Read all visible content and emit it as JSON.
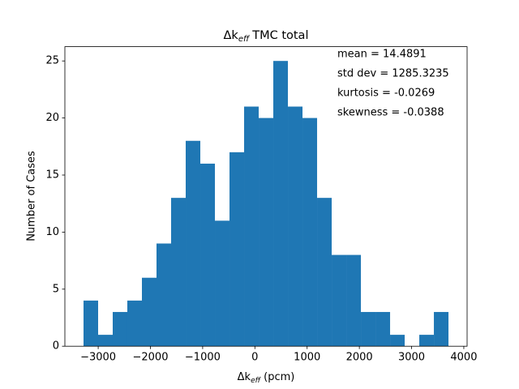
{
  "chart_data": {
    "type": "histogram",
    "title": {
      "symbol": "Δk",
      "subscript": "eff",
      "text": "TMC total"
    },
    "x_label": {
      "symbol": "Δk",
      "subscript": "eff",
      "text": "(pcm)"
    },
    "y_label": "Number of Cases",
    "annotations": [
      "mean = 14.4891",
      "std dev = 1285.3235",
      "kurtosis = -0.0269",
      "skewness = -0.0388"
    ],
    "color": "#1f77b4",
    "bins": [
      -3281,
      -3001.5,
      -2722,
      -2442.5,
      -2163,
      -1883.5,
      -1604,
      -1324.5,
      -1045,
      -765.5,
      -486,
      -206.5,
      73,
      352.5,
      632,
      911.5,
      1191,
      1470.5,
      1750,
      2029.5,
      2309,
      2588.5,
      2868,
      3147.5,
      3427,
      3706.5
    ],
    "values": [
      4,
      1,
      3,
      4,
      6,
      9,
      13,
      18,
      16,
      11,
      17,
      21,
      20,
      25,
      21,
      20,
      13,
      8,
      8,
      3,
      3,
      1,
      0,
      1,
      3
    ],
    "xlim": [
      -3638,
      4063
    ],
    "ylim": [
      0,
      26.25
    ],
    "xticks": [
      {
        "value": -3000,
        "label": "−3000"
      },
      {
        "value": -2000,
        "label": "−2000"
      },
      {
        "value": -1000,
        "label": "−1000"
      },
      0,
      1000,
      2000,
      3000,
      4000
    ],
    "yticks": [
      0,
      5,
      10,
      15,
      20,
      25
    ]
  }
}
